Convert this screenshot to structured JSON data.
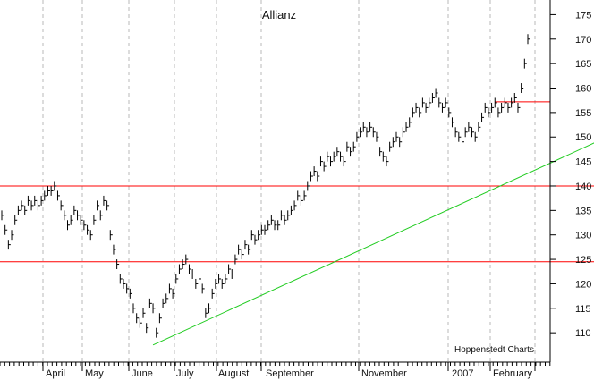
{
  "chart_data": {
    "type": "ohlc-bar",
    "title": "Allianz",
    "source": "Hoppenstedt Charts",
    "ylim": [
      104,
      178
    ],
    "y_ticks": [
      110,
      115,
      120,
      125,
      130,
      135,
      140,
      145,
      150,
      155,
      160,
      165,
      170,
      175
    ],
    "x_axis": {
      "months": [
        "April",
        "May",
        "June",
        "July",
        "August",
        "September",
        "November",
        "2007",
        "February"
      ]
    },
    "horizontal_lines": [
      {
        "value": 140.0,
        "color": "#ff0000"
      },
      {
        "value": 124.5,
        "color": "#ff0000"
      },
      {
        "value": 157.2,
        "color": "#ff0000",
        "from_index": 150
      }
    ],
    "trend_line": {
      "color": "#22cc22",
      "from": [
        46,
        107.5
      ],
      "to": [
        202,
        155.5
      ]
    },
    "grid": {
      "horizontal": false,
      "vertical_dashed_monthly": true
    },
    "series_close": [
      134,
      131,
      128,
      130,
      133,
      135,
      136,
      135,
      137,
      136,
      137,
      136,
      137,
      138,
      139,
      139,
      140,
      138,
      136,
      134,
      132,
      133,
      135,
      134,
      133,
      132,
      131,
      130,
      133,
      136,
      134,
      137,
      136,
      130,
      127,
      124,
      121,
      120,
      119,
      118,
      115,
      113,
      112,
      114,
      111,
      116,
      115,
      110,
      113,
      116,
      117,
      119,
      118,
      121,
      123,
      124,
      125,
      123,
      122,
      120,
      121,
      119,
      114,
      115,
      118,
      120,
      121,
      120,
      121,
      123,
      122,
      125,
      127,
      126,
      128,
      127,
      130,
      129,
      130,
      131,
      131,
      132,
      133,
      132,
      132,
      134,
      133,
      134,
      135,
      136,
      138,
      137,
      138,
      140,
      142,
      143,
      142,
      145,
      144,
      146,
      145,
      146,
      147,
      146,
      145,
      148,
      147,
      148,
      150,
      151,
      152,
      151,
      152,
      151,
      150,
      147,
      146,
      145,
      148,
      149,
      150,
      149,
      151,
      152,
      153,
      155,
      156,
      155,
      157,
      156,
      157,
      158,
      159,
      157,
      156,
      157,
      155,
      153,
      151,
      150,
      149,
      151,
      152,
      151,
      150,
      152,
      154,
      156,
      155,
      156,
      157,
      155,
      156,
      157,
      156,
      157,
      158,
      156,
      160,
      165,
      170
    ],
    "series_high": [
      135,
      132,
      129,
      131,
      134,
      136,
      137,
      136,
      138,
      137,
      138,
      137,
      138,
      139,
      140,
      140,
      141,
      139,
      137,
      135,
      133,
      134,
      136,
      135,
      134,
      133,
      132,
      131,
      134,
      137,
      135,
      138,
      137,
      131,
      128,
      125,
      122,
      121,
      120,
      119,
      116,
      114,
      113,
      115,
      112,
      117,
      116,
      111,
      114,
      117,
      118,
      120,
      119,
      122,
      124,
      125,
      126,
      124,
      123,
      121,
      122,
      120,
      115,
      116,
      119,
      121,
      122,
      121,
      122,
      124,
      123,
      126,
      128,
      127,
      129,
      128,
      131,
      130,
      131,
      132,
      132,
      133,
      134,
      133,
      133,
      135,
      134,
      135,
      136,
      137,
      139,
      138,
      139,
      141,
      143,
      144,
      143,
      146,
      145,
      147,
      146,
      147,
      148,
      147,
      146,
      149,
      148,
      149,
      151,
      152,
      153,
      152,
      153,
      152,
      151,
      148,
      147,
      146,
      149,
      150,
      151,
      150,
      152,
      153,
      154,
      156,
      157,
      156,
      158,
      157,
      158,
      159,
      160,
      158,
      157,
      158,
      156,
      154,
      152,
      151,
      150,
      152,
      153,
      152,
      151,
      153,
      155,
      157,
      156,
      157,
      158,
      156,
      157,
      158,
      157,
      158,
      159,
      157,
      161,
      166,
      171
    ],
    "series_low": [
      133,
      130,
      127,
      129,
      132,
      134,
      135,
      134,
      136,
      135,
      136,
      135,
      136,
      137,
      138,
      138,
      139,
      137,
      135,
      133,
      131,
      132,
      134,
      133,
      132,
      131,
      130,
      129,
      132,
      135,
      133,
      136,
      135,
      129,
      126,
      123,
      120,
      119,
      118,
      117,
      114,
      112,
      111,
      113,
      110,
      115,
      114,
      109,
      112,
      115,
      116,
      118,
      117,
      120,
      122,
      123,
      124,
      122,
      121,
      119,
      120,
      118,
      113,
      114,
      117,
      119,
      120,
      119,
      120,
      122,
      121,
      124,
      126,
      125,
      127,
      126,
      129,
      128,
      129,
      130,
      130,
      131,
      132,
      131,
      131,
      133,
      132,
      133,
      134,
      135,
      137,
      136,
      137,
      139,
      141,
      142,
      141,
      144,
      143,
      145,
      144,
      145,
      146,
      145,
      144,
      147,
      146,
      147,
      149,
      150,
      151,
      150,
      151,
      150,
      149,
      146,
      145,
      144,
      147,
      148,
      149,
      148,
      150,
      151,
      152,
      154,
      155,
      154,
      156,
      155,
      156,
      157,
      158,
      156,
      155,
      156,
      154,
      152,
      150,
      149,
      148,
      150,
      151,
      150,
      149,
      151,
      153,
      155,
      154,
      155,
      156,
      154,
      155,
      156,
      155,
      156,
      157,
      155,
      159,
      164,
      169
    ]
  }
}
